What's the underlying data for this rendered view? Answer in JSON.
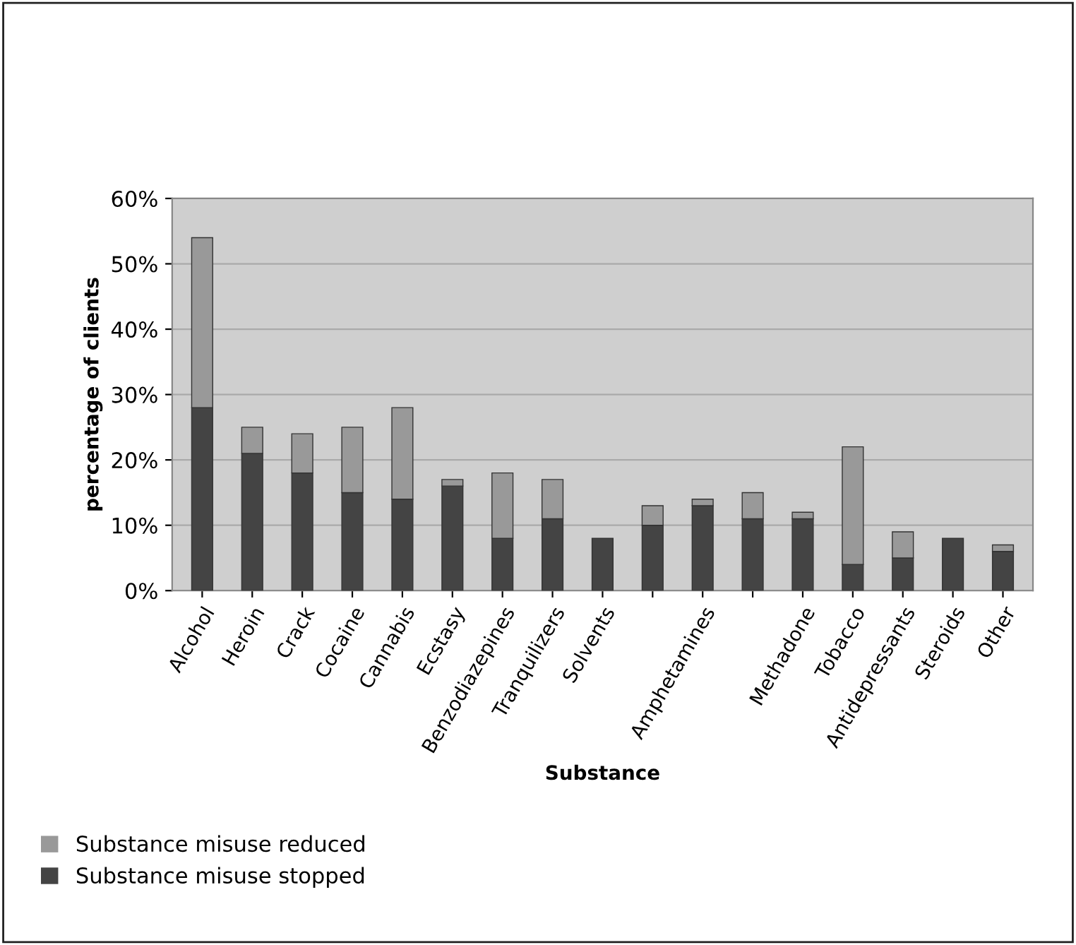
{
  "chart_data": {
    "type": "bar",
    "stacked": true,
    "xlabel": "Substance",
    "ylabel": "percentage of clients",
    "categories": [
      "Alcohol",
      "Heroin",
      "Crack",
      "Cocaine",
      "Cannabis",
      "Ecstasy",
      "Benzodiazepines",
      "Tranquilizers",
      "Solvents",
      null,
      "Amphetamines",
      null,
      "Methadone",
      "Tobacco",
      "Antidepressants",
      "Steroids",
      "Other"
    ],
    "series": [
      {
        "name": "Substance misuse stopped",
        "color": "#444444",
        "values": [
          28,
          21,
          18,
          15,
          14,
          16,
          8,
          11,
          8,
          10,
          13,
          11,
          11,
          4,
          5,
          8,
          6
        ]
      },
      {
        "name": "Substance misuse reduced",
        "color": "#999999",
        "values": [
          26,
          4,
          6,
          10,
          14,
          1,
          10,
          6,
          null,
          3,
          1,
          4,
          1,
          18,
          4,
          null,
          1
        ]
      }
    ],
    "ylim": [
      0,
      60
    ],
    "yticks": [
      {
        "value": 0,
        "label": "0%"
      },
      {
        "value": 10,
        "label": "10%"
      },
      {
        "value": 20,
        "label": "20%"
      },
      {
        "value": 30,
        "label": "30%"
      },
      {
        "value": 40,
        "label": "40%"
      },
      {
        "value": 50,
        "label": "50%"
      },
      {
        "value": 60,
        "label": "60%"
      }
    ],
    "grid": "y",
    "legend": "bottom left"
  }
}
